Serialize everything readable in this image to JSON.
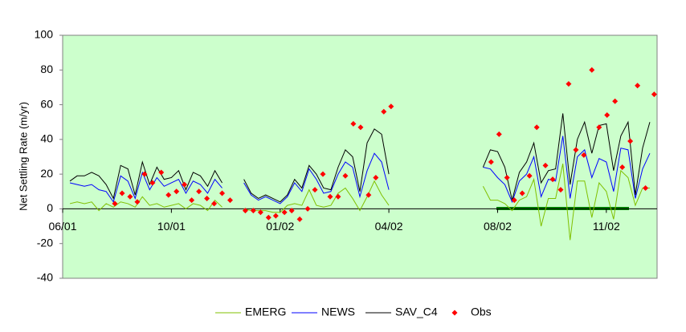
{
  "chart_data": {
    "type": "line",
    "y_label": "Net Settling Rate (m/yr)",
    "ylim": [
      -40,
      100
    ],
    "yticks": [
      -40,
      -20,
      0,
      20,
      40,
      60,
      80,
      100
    ],
    "xlim": [
      0,
      82
    ],
    "xticks": [
      {
        "value": 0,
        "label": "06/01"
      },
      {
        "value": 15,
        "label": "10/01"
      },
      {
        "value": 30,
        "label": "01/02"
      },
      {
        "value": 45,
        "label": "04/02"
      },
      {
        "value": 60,
        "label": "08/02"
      },
      {
        "value": 75,
        "label": "11/02"
      }
    ],
    "legend": "bottom",
    "x": [
      1,
      2,
      3,
      4,
      5,
      6,
      7,
      8,
      9,
      10,
      11,
      12,
      13,
      14,
      15,
      16,
      17,
      18,
      19,
      20,
      21,
      22,
      23,
      25,
      26,
      27,
      28,
      29,
      30,
      31,
      32,
      33,
      34,
      35,
      36,
      37,
      38,
      39,
      40,
      41,
      42,
      43,
      44,
      45,
      50,
      58,
      59,
      60,
      61,
      62,
      63,
      64,
      65,
      66,
      67,
      68,
      69,
      70,
      71,
      72,
      73,
      74,
      75,
      76,
      77,
      78,
      79,
      80,
      81
    ],
    "series": [
      {
        "name": "EMERG",
        "color": "#80c000",
        "values": [
          3,
          4,
          3,
          4,
          -1,
          3,
          1,
          4,
          3,
          1,
          7,
          2,
          3,
          1,
          2,
          3,
          0,
          3,
          2,
          -1,
          5,
          1,
          null,
          0,
          -1,
          -1,
          -1,
          -2,
          -2,
          2,
          3,
          2,
          11,
          2,
          1,
          2,
          9,
          12,
          6,
          -1,
          7,
          16,
          8,
          2,
          null,
          13,
          5,
          5,
          3,
          -1,
          5,
          7,
          17,
          -10,
          6,
          6,
          26,
          -18,
          16,
          16,
          -5,
          15,
          10,
          -6,
          22,
          18,
          2,
          12,
          12
        ]
      },
      {
        "name": "NEWS",
        "color": "#0000ff",
        "values": [
          15,
          14,
          13,
          14,
          11,
          10,
          4,
          19,
          16,
          6,
          21,
          11,
          18,
          13,
          15,
          17,
          9,
          16,
          14,
          9,
          17,
          12,
          null,
          15,
          8,
          5,
          7,
          5,
          3,
          7,
          15,
          10,
          23,
          17,
          9,
          10,
          20,
          27,
          24,
          7,
          22,
          32,
          27,
          11,
          null,
          24,
          23,
          18,
          14,
          4,
          16,
          20,
          30,
          7,
          17,
          16,
          42,
          6,
          30,
          34,
          18,
          29,
          27,
          10,
          35,
          34,
          6,
          23,
          32
        ]
      },
      {
        "name": "SAV_C4",
        "color": "#000000",
        "values": [
          16,
          19,
          19,
          21,
          19,
          14,
          6,
          25,
          23,
          8,
          27,
          14,
          24,
          17,
          18,
          22,
          11,
          21,
          19,
          13,
          22,
          15,
          null,
          17,
          9,
          6,
          8,
          6,
          4,
          8,
          17,
          12,
          25,
          20,
          12,
          11,
          24,
          34,
          30,
          10,
          38,
          46,
          43,
          20,
          null,
          24,
          34,
          33,
          24,
          5,
          21,
          27,
          38,
          15,
          22,
          23,
          55,
          14,
          40,
          50,
          32,
          48,
          49,
          22,
          42,
          50,
          8,
          35,
          50
        ]
      },
      {
        "name": "Obs",
        "type": "scatter",
        "color": "#ff0000",
        "x": [
          7.2,
          8.2,
          9.3,
          10.3,
          11.3,
          12.4,
          13.6,
          14.6,
          15.7,
          16.8,
          17.8,
          18.8,
          19.9,
          20.9,
          22,
          23.1,
          25.2,
          26.3,
          27.3,
          28.4,
          29.4,
          30.6,
          31.6,
          32.7,
          33.8,
          34.8,
          35.9,
          36.9,
          38,
          39,
          40.1,
          41.1,
          42.2,
          43.2,
          44.3,
          45.3,
          59.1,
          60.2,
          61.3,
          62.3,
          63.4,
          64.4,
          65.4,
          66.6,
          67.6,
          68.7,
          69.8,
          70.8,
          71.9,
          73,
          74,
          75.1,
          76.2,
          77.2,
          78.3,
          79.3,
          80.4,
          81.6
        ],
        "values": [
          3,
          9,
          7,
          4,
          20,
          15,
          21,
          8,
          10,
          14,
          5,
          10,
          6,
          3,
          9,
          5,
          -1,
          -1,
          -2,
          -5,
          -4,
          -2,
          -1,
          -6,
          0,
          11,
          20,
          7,
          7,
          19,
          49,
          47,
          8,
          18,
          56,
          59,
          27,
          43,
          18,
          5,
          9,
          19,
          47,
          25,
          17,
          11,
          72,
          34,
          31,
          80,
          47,
          54,
          62,
          24,
          39,
          71,
          12,
          66
        ]
      }
    ]
  }
}
